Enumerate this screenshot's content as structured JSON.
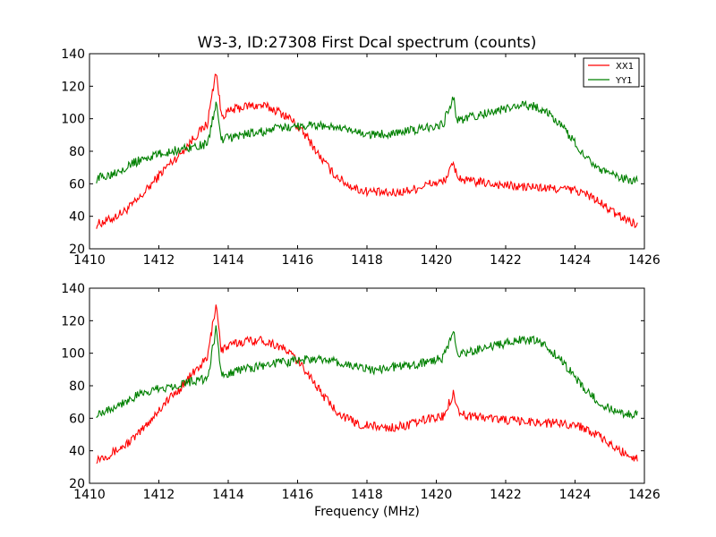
{
  "figure": {
    "title": "W3-3, ID:27308 First Dcal spectrum (counts)",
    "xlabel": "Frequency (MHz)"
  },
  "chart_data": [
    {
      "type": "line",
      "title": "W3-3, ID:27308 First Dcal spectrum (counts)",
      "xlabel": "",
      "ylabel": "",
      "xlim": [
        1410,
        1426
      ],
      "ylim": [
        20,
        140
      ],
      "xticks": [
        1410,
        1412,
        1414,
        1416,
        1418,
        1420,
        1422,
        1424,
        1426
      ],
      "yticks": [
        20,
        40,
        60,
        80,
        100,
        120,
        140
      ],
      "grid": false,
      "legend": "top-right",
      "series": [
        {
          "name": "XX1",
          "color": "#ff0000",
          "x": [
            1410.2,
            1410.6,
            1411.0,
            1411.4,
            1411.8,
            1412.2,
            1412.6,
            1413.0,
            1413.4,
            1413.65,
            1413.8,
            1414.2,
            1414.6,
            1415.0,
            1415.4,
            1415.8,
            1416.0,
            1416.3,
            1416.6,
            1417.0,
            1417.4,
            1417.8,
            1418.2,
            1418.6,
            1419.0,
            1419.4,
            1419.8,
            1420.2,
            1420.5,
            1420.6,
            1420.8,
            1421.2,
            1421.6,
            1422.0,
            1422.4,
            1422.8,
            1423.2,
            1423.6,
            1424.0,
            1424.4,
            1424.8,
            1425.2,
            1425.6,
            1425.8
          ],
          "values": [
            35,
            38,
            43,
            50,
            60,
            70,
            78,
            88,
            97,
            130,
            102,
            106,
            108,
            108,
            105,
            100,
            95,
            88,
            78,
            67,
            60,
            56,
            55,
            54,
            55,
            57,
            60,
            61,
            72,
            65,
            62,
            61,
            60,
            59,
            58,
            58,
            57,
            57,
            56,
            53,
            47,
            41,
            37,
            35
          ]
        },
        {
          "name": "YY1",
          "color": "#008000",
          "x": [
            1410.2,
            1410.6,
            1411.0,
            1411.4,
            1411.8,
            1412.2,
            1412.6,
            1413.0,
            1413.4,
            1413.65,
            1413.8,
            1414.2,
            1414.6,
            1415.0,
            1415.4,
            1415.8,
            1416.2,
            1416.6,
            1417.0,
            1417.4,
            1417.8,
            1418.2,
            1418.6,
            1419.0,
            1419.4,
            1419.8,
            1420.2,
            1420.5,
            1420.6,
            1420.8,
            1421.2,
            1421.6,
            1422.0,
            1422.4,
            1422.8,
            1423.2,
            1423.6,
            1424.0,
            1424.4,
            1424.8,
            1425.2,
            1425.6,
            1425.8
          ],
          "values": [
            63,
            66,
            70,
            74,
            77,
            79,
            81,
            83,
            84,
            110,
            87,
            89,
            91,
            92,
            94,
            95,
            96,
            96,
            95,
            93,
            91,
            90,
            91,
            92,
            93,
            95,
            97,
            113,
            99,
            100,
            102,
            104,
            106,
            108,
            108,
            104,
            96,
            85,
            75,
            68,
            64,
            62,
            62
          ]
        }
      ]
    },
    {
      "type": "line",
      "title": "",
      "xlabel": "Frequency (MHz)",
      "ylabel": "",
      "xlim": [
        1410,
        1426
      ],
      "ylim": [
        20,
        140
      ],
      "xticks": [
        1410,
        1412,
        1414,
        1416,
        1418,
        1420,
        1422,
        1424,
        1426
      ],
      "yticks": [
        20,
        40,
        60,
        80,
        100,
        120,
        140
      ],
      "grid": false,
      "legend": "",
      "series": [
        {
          "color": "#ff0000",
          "x": [
            1410.2,
            1410.6,
            1411.0,
            1411.4,
            1411.8,
            1412.2,
            1412.6,
            1413.0,
            1413.4,
            1413.65,
            1413.8,
            1414.2,
            1414.6,
            1415.0,
            1415.4,
            1415.8,
            1416.0,
            1416.3,
            1416.6,
            1417.0,
            1417.4,
            1417.8,
            1418.2,
            1418.6,
            1419.0,
            1419.4,
            1419.8,
            1420.2,
            1420.5,
            1420.6,
            1420.8,
            1421.2,
            1421.6,
            1422.0,
            1422.4,
            1422.8,
            1423.2,
            1423.6,
            1424.0,
            1424.4,
            1424.8,
            1425.2,
            1425.6,
            1425.8
          ],
          "values": [
            35,
            38,
            43,
            50,
            60,
            70,
            78,
            88,
            97,
            131,
            102,
            106,
            108,
            108,
            105,
            100,
            95,
            88,
            78,
            67,
            60,
            56,
            55,
            54,
            55,
            57,
            60,
            61,
            76,
            66,
            62,
            61,
            60,
            59,
            58,
            58,
            57,
            57,
            56,
            53,
            47,
            41,
            37,
            35
          ]
        },
        {
          "color": "#008000",
          "x": [
            1410.2,
            1410.6,
            1411.0,
            1411.4,
            1411.8,
            1412.2,
            1412.6,
            1413.0,
            1413.4,
            1413.65,
            1413.8,
            1414.2,
            1414.6,
            1415.0,
            1415.4,
            1415.8,
            1416.2,
            1416.6,
            1417.0,
            1417.4,
            1417.8,
            1418.2,
            1418.6,
            1419.0,
            1419.4,
            1419.8,
            1420.2,
            1420.5,
            1420.6,
            1420.8,
            1421.2,
            1421.6,
            1422.0,
            1422.4,
            1422.8,
            1423.2,
            1423.6,
            1424.0,
            1424.4,
            1424.8,
            1425.2,
            1425.6,
            1425.8
          ],
          "values": [
            63,
            66,
            70,
            74,
            77,
            79,
            81,
            83,
            84,
            115,
            87,
            89,
            91,
            92,
            94,
            95,
            96,
            96,
            95,
            93,
            91,
            90,
            91,
            92,
            93,
            95,
            97,
            114,
            99,
            100,
            102,
            104,
            106,
            108,
            108,
            104,
            96,
            85,
            75,
            68,
            64,
            62,
            62
          ]
        }
      ]
    }
  ]
}
